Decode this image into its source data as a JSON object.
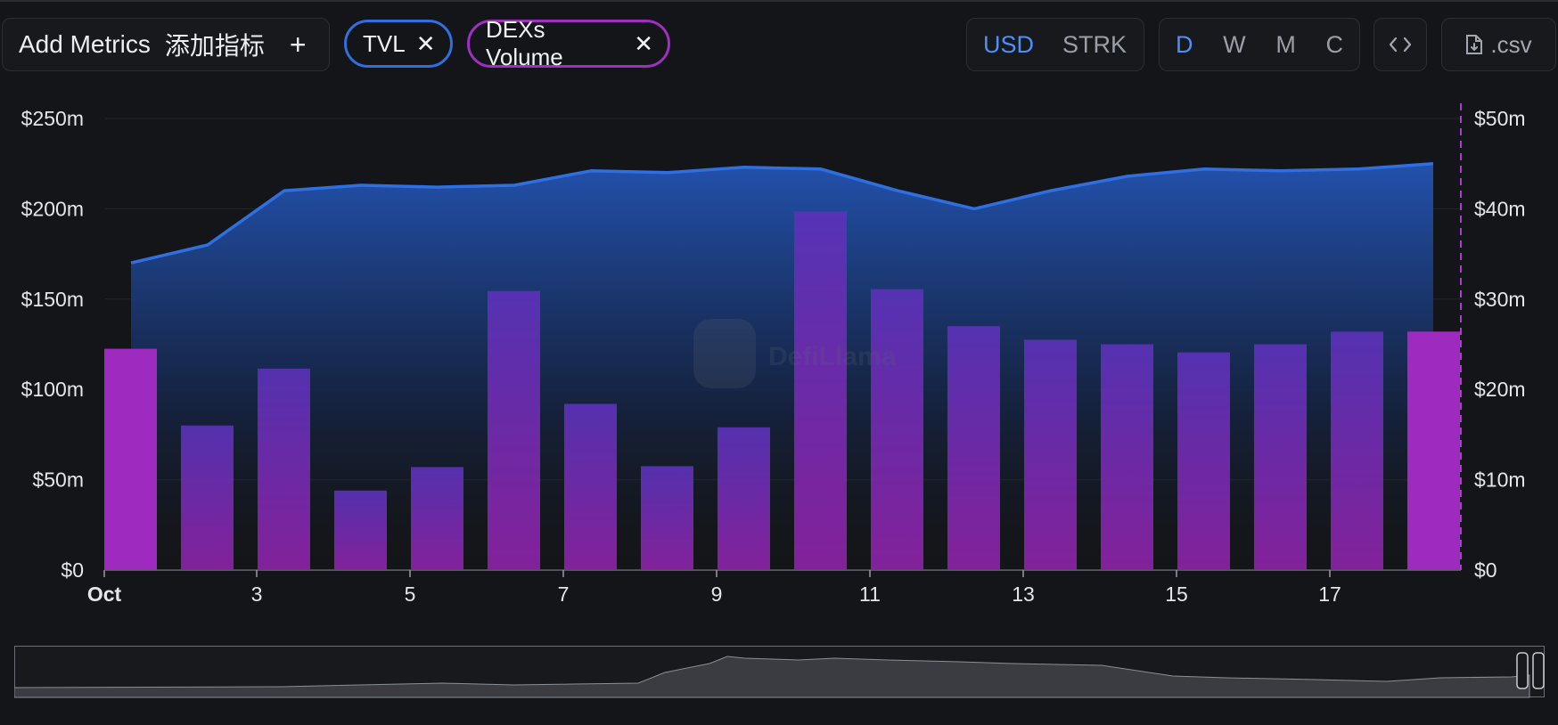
{
  "toolbar": {
    "add_metrics_label": "Add Metrics",
    "add_metrics_cn": "添加指标",
    "add_icon": "plus-icon",
    "metric_pills": [
      {
        "label": "TVL",
        "color": "#2f6fe0"
      },
      {
        "label": "DEXs Volume",
        "color": "#9f2fc0"
      }
    ],
    "currency": {
      "options": [
        "USD",
        "STRK"
      ],
      "selected": "USD"
    },
    "period": {
      "options": [
        "D",
        "W",
        "M",
        "C"
      ],
      "selected": "D"
    },
    "embed_icon": "code-icon",
    "csv_label": ".csv",
    "csv_icon": "download-file-icon"
  },
  "chart_data": {
    "type": "bar+area",
    "x_tick_labels": [
      "Oct",
      "3",
      "5",
      "7",
      "9",
      "11",
      "13",
      "15",
      "17"
    ],
    "categories": [
      "Oct 1",
      "Oct 2",
      "Oct 3",
      "Oct 4",
      "Oct 5",
      "Oct 6",
      "Oct 7",
      "Oct 8",
      "Oct 9",
      "Oct 10",
      "Oct 11",
      "Oct 12",
      "Oct 13",
      "Oct 14",
      "Oct 15",
      "Oct 16",
      "Oct 17",
      "Oct 18"
    ],
    "left_axis": {
      "ticks": [
        "$0",
        "$50m",
        "$100m",
        "$150m",
        "$200m",
        "$250m"
      ],
      "min": 0,
      "max": 250
    },
    "right_axis": {
      "ticks": [
        "$0",
        "$10m",
        "$20m",
        "$30m",
        "$40m",
        "$50m"
      ],
      "min": 0,
      "max": 50
    },
    "series": [
      {
        "name": "TVL",
        "axis": "left",
        "kind": "area",
        "color": "#2f6fe0",
        "values": [
          170,
          180,
          210,
          213,
          212,
          213,
          221,
          220,
          223,
          222,
          210,
          200,
          210,
          218,
          222,
          221,
          222,
          225
        ]
      },
      {
        "name": "DEXs Volume",
        "axis": "right",
        "kind": "bar",
        "color": "#9f2fc0",
        "values": [
          24.5,
          16.0,
          22.3,
          8.8,
          11.4,
          30.9,
          18.4,
          11.5,
          15.8,
          39.7,
          31.1,
          27.0,
          25.5,
          25.0,
          24.1,
          25.0,
          26.4,
          26.4
        ]
      }
    ],
    "grid": true
  }
}
